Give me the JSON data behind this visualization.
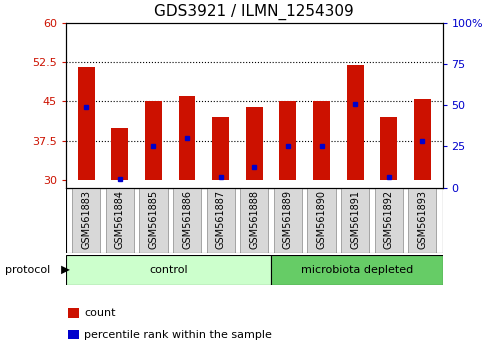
{
  "title": "GDS3921 / ILMN_1254309",
  "samples": [
    "GSM561883",
    "GSM561884",
    "GSM561885",
    "GSM561886",
    "GSM561887",
    "GSM561888",
    "GSM561889",
    "GSM561890",
    "GSM561891",
    "GSM561892",
    "GSM561893"
  ],
  "count_values": [
    51.5,
    40.0,
    45.0,
    46.0,
    42.0,
    44.0,
    45.0,
    45.0,
    52.0,
    42.0,
    45.5
  ],
  "percentile_values": [
    44.0,
    30.2,
    36.5,
    38.0,
    30.5,
    32.5,
    36.5,
    36.5,
    44.5,
    30.5,
    37.5
  ],
  "baseline": 30,
  "ylim_left": [
    28.5,
    60
  ],
  "ylim_right": [
    0,
    100
  ],
  "yticks_left": [
    30,
    37.5,
    45,
    52.5,
    60
  ],
  "yticks_right": [
    0,
    25,
    50,
    75,
    100
  ],
  "ytick_labels_left": [
    "30",
    "37.5",
    "45",
    "52.5",
    "60"
  ],
  "ytick_labels_right": [
    "0",
    "25",
    "50",
    "75",
    "100%"
  ],
  "bar_color": "#CC1100",
  "dot_color": "#0000CC",
  "bar_width": 0.5,
  "n_control": 6,
  "n_microbiota": 5,
  "control_label": "control",
  "microbiota_label": "microbiota depleted",
  "protocol_label": "protocol",
  "legend_count_label": "count",
  "legend_percentile_label": "percentile rank within the sample",
  "control_color": "#ccffcc",
  "microbiota_color": "#66cc66",
  "bg_color": "#ffffff",
  "dotted_lines": [
    37.5,
    45.0,
    52.5
  ],
  "title_fontsize": 11,
  "axis_tick_fontsize": 8,
  "sample_label_fontsize": 7,
  "legend_fontsize": 8,
  "protocol_fontsize": 8,
  "sample_box_color": "#d8d8d8",
  "sample_box_edge": "#999999"
}
